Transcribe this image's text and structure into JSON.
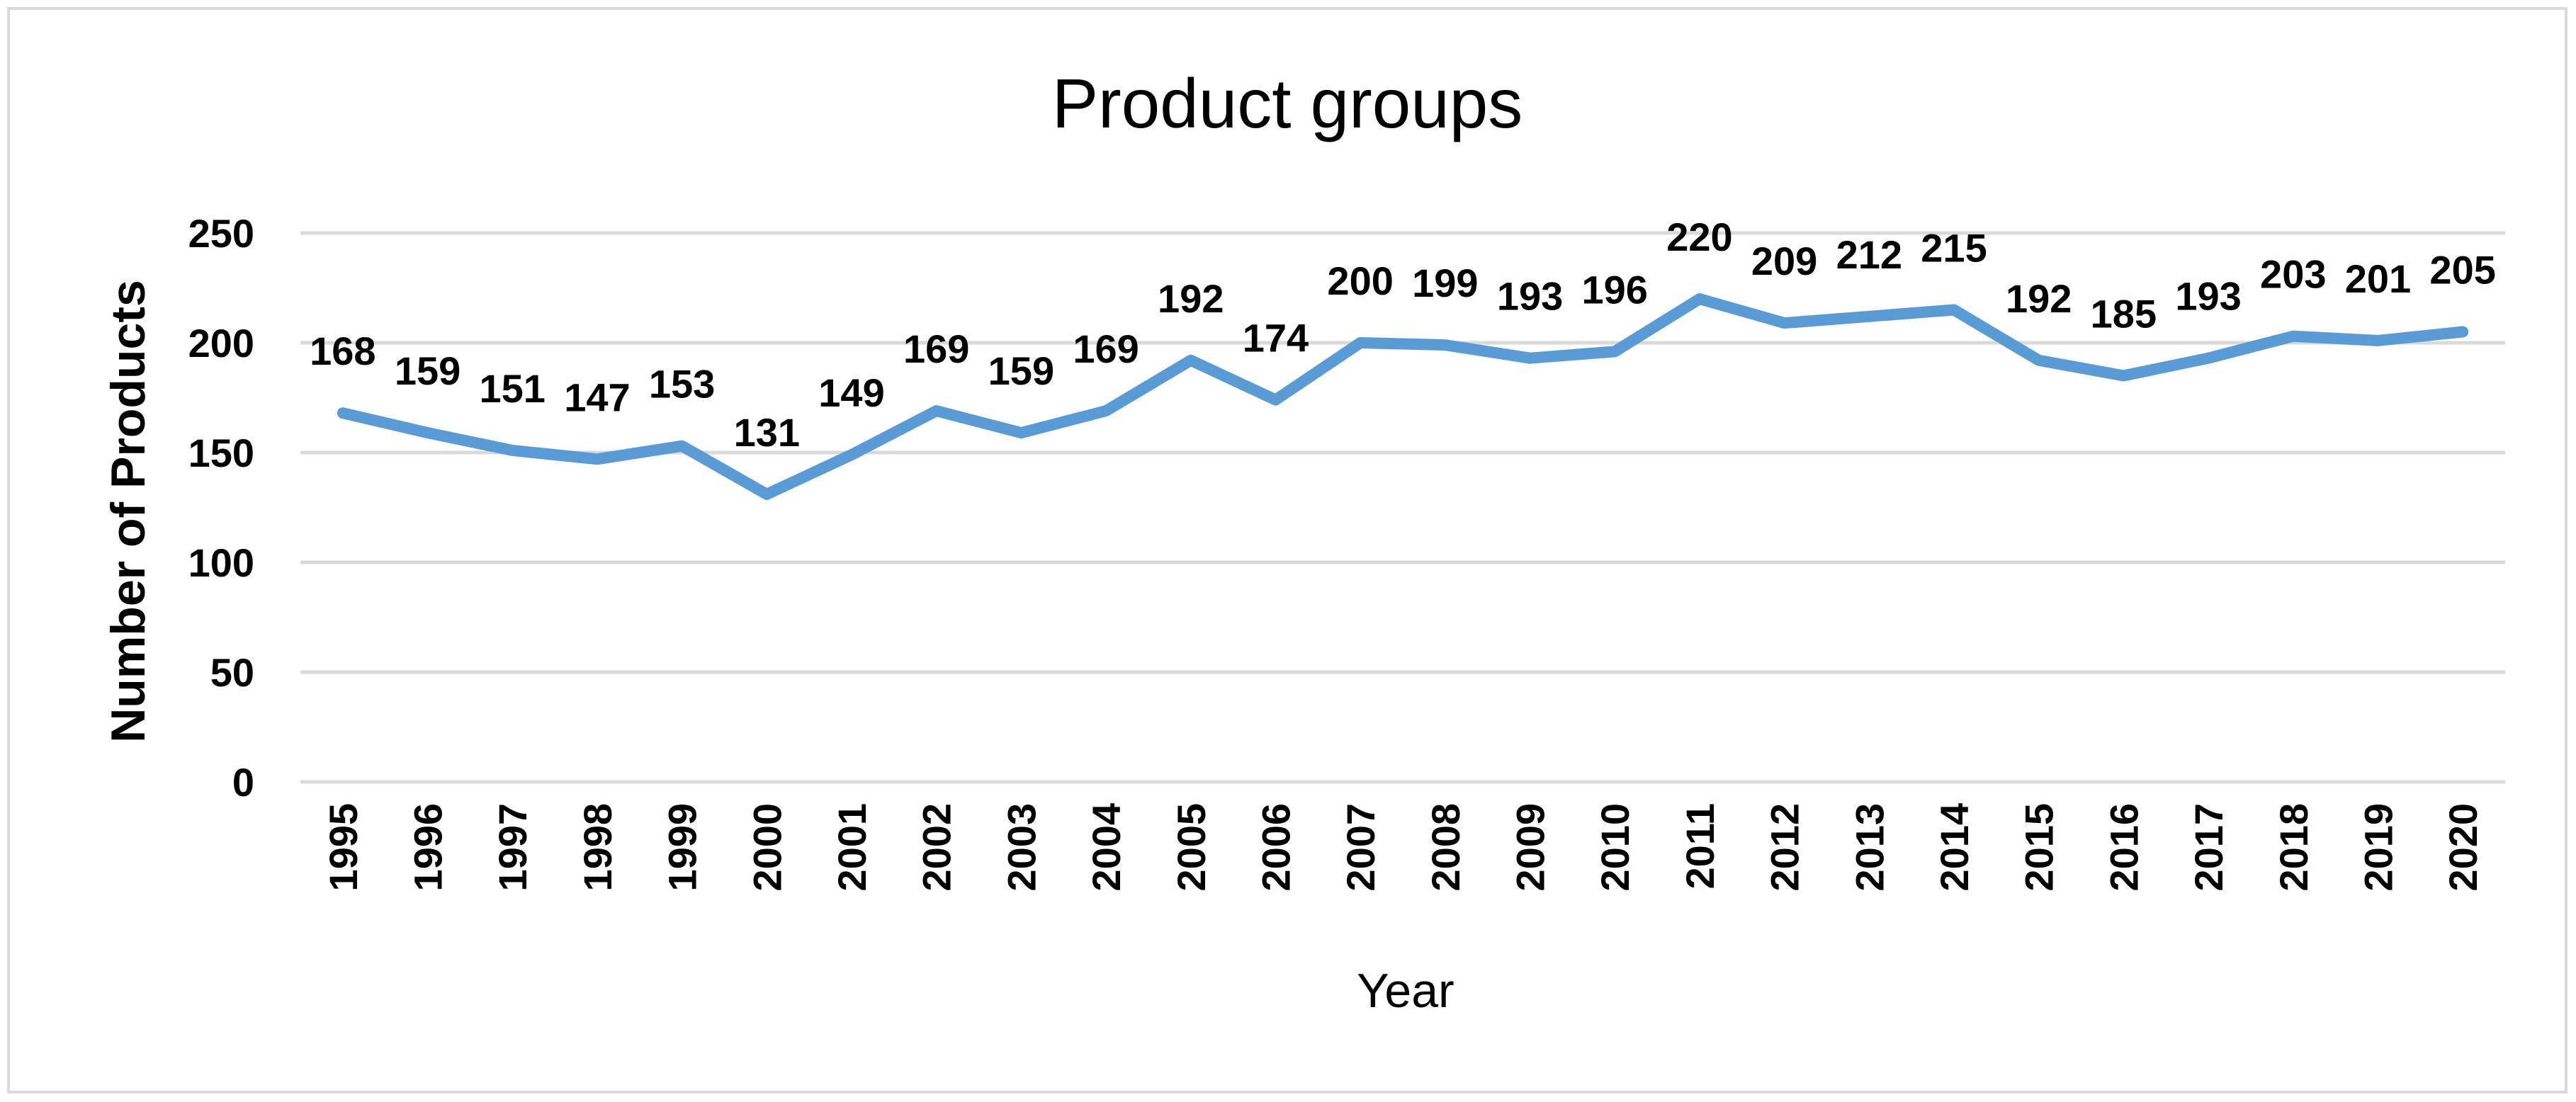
{
  "chart_data": {
    "type": "line",
    "title": "Product groups",
    "xlabel": "Year",
    "ylabel": "Number of Products",
    "ylim": [
      0,
      250
    ],
    "yticks": [
      0,
      50,
      100,
      150,
      200,
      250
    ],
    "yticks_labels": [
      "0",
      "50",
      "100",
      "150",
      "200",
      "250"
    ],
    "grid": true,
    "legend": "none",
    "categories": [
      "1995",
      "1996",
      "1997",
      "1998",
      "1999",
      "2000",
      "2001",
      "2002",
      "2003",
      "2004",
      "2005",
      "2006",
      "2007",
      "2008",
      "2009",
      "2010",
      "2011",
      "2012",
      "2013",
      "2014",
      "2015",
      "2016",
      "2017",
      "2018",
      "2019",
      "2020"
    ],
    "series": [
      {
        "name": "Number of Products",
        "color": "#5b9bd5",
        "values": [
          168,
          159,
          151,
          147,
          153,
          131,
          149,
          169,
          159,
          169,
          192,
          174,
          200,
          199,
          193,
          196,
          220,
          209,
          212,
          215,
          192,
          185,
          193,
          203,
          201,
          205
        ],
        "labels": [
          "168",
          "159",
          "151",
          "147",
          "153",
          "131",
          "149",
          "169",
          "159",
          "169",
          "192",
          "174",
          "200",
          "199",
          "193",
          "196",
          "220",
          "209",
          "212",
          "215",
          "192",
          "185",
          "193",
          "203",
          "201",
          "205"
        ]
      }
    ]
  }
}
